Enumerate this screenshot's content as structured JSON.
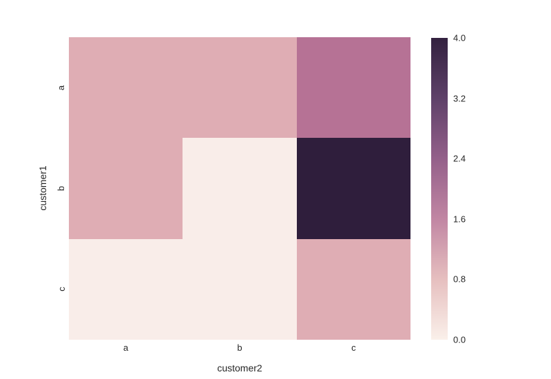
{
  "figure": {
    "background": "#ffffff",
    "text_color": "#262626"
  },
  "chart_data": {
    "type": "heatmap",
    "title": "",
    "xlabel": "customer2",
    "ylabel": "customer1",
    "x_categories": [
      "a",
      "b",
      "c"
    ],
    "y_categories": [
      "a",
      "b",
      "c"
    ],
    "values": [
      [
        1,
        1,
        2
      ],
      [
        1,
        0,
        4
      ],
      [
        0,
        0,
        1
      ]
    ],
    "vmin": 0,
    "vmax": 4,
    "grid": false,
    "legend_position": "right-colorbar",
    "colorbar_ticks": [
      "4.0",
      "3.2",
      "2.4",
      "1.6",
      "0.8",
      "0.0"
    ],
    "value_colors": {
      "0": "#f9ede9",
      "1": "#dfadb4",
      "2": "#b67295",
      "4": "#2f1e3c"
    },
    "colorbar_gradient_top_to_bottom": [
      "#33213f",
      "#5e4169",
      "#94608a",
      "#c186a3",
      "#e6bfbf",
      "#faf0ea"
    ]
  }
}
